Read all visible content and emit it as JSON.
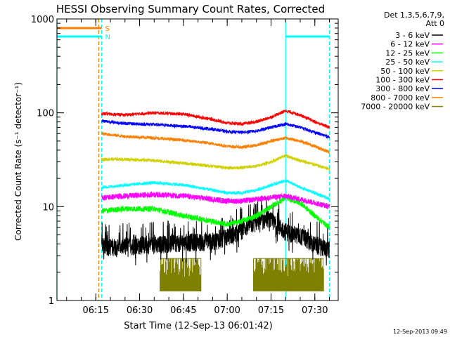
{
  "chart_data": {
    "type": "line",
    "title": "HESSI Observing Summary Count Rates, Corrected",
    "xlabel": "Start Time (12-Sep-13 06:01:42)",
    "ylabel": "Corrected Count Rate (s⁻¹ detector⁻¹)",
    "xlim": [
      "06:01:42",
      "07:38:00"
    ],
    "ylim": [
      1,
      1000
    ],
    "yscale": "log",
    "x_ticks": [
      "06:15",
      "06:30",
      "06:45",
      "07:00",
      "07:15",
      "07:30"
    ],
    "y_ticks": [
      "1",
      "10",
      "100",
      "1000"
    ],
    "legend": {
      "placement": "top-right",
      "header": [
        "Det 1,3,5,6,7,9,",
        "Att 0"
      ]
    },
    "footer": "12-Sep-2013 09:49",
    "data_start": "06:17",
    "data_end": "07:35",
    "series": [
      {
        "name": "3 - 6 keV",
        "color": "#000000",
        "x": [
          "06:17",
          "06:25",
          "06:35",
          "06:45",
          "06:55",
          "07:02",
          "07:08",
          "07:14",
          "07:20",
          "07:26",
          "07:30",
          "07:35"
        ],
        "y": [
          3.8,
          3.8,
          4.0,
          4.2,
          4.3,
          5.0,
          6.5,
          7.5,
          5.5,
          4.8,
          4.0,
          3.5
        ]
      },
      {
        "name": "6 - 12 keV",
        "color": "#ff00ff",
        "x": [
          "06:17",
          "06:25",
          "06:35",
          "06:45",
          "06:55",
          "07:00",
          "07:05",
          "07:10",
          "07:15",
          "07:20",
          "07:25",
          "07:30",
          "07:35"
        ],
        "y": [
          12.5,
          13,
          13.5,
          13,
          12,
          11.5,
          11.5,
          12,
          12.5,
          13,
          12,
          11,
          10
        ]
      },
      {
        "name": "12 - 25 keV",
        "color": "#00ff00",
        "x": [
          "06:17",
          "06:25",
          "06:35",
          "06:45",
          "06:55",
          "07:00",
          "07:05",
          "07:10",
          "07:15",
          "07:20",
          "07:25",
          "07:30",
          "07:35"
        ],
        "y": [
          9,
          9.5,
          9.5,
          8,
          7,
          6.5,
          7,
          8,
          10,
          12.5,
          11,
          8,
          6
        ]
      },
      {
        "name": "25 - 50 keV",
        "color": "#00ffff",
        "x": [
          "06:17",
          "06:25",
          "06:35",
          "06:45",
          "06:55",
          "07:00",
          "07:05",
          "07:10",
          "07:15",
          "07:20",
          "07:25",
          "07:30",
          "07:35"
        ],
        "y": [
          16,
          17,
          18,
          17,
          15,
          14,
          14,
          15,
          17,
          19,
          16,
          14,
          12
        ]
      },
      {
        "name": "50 - 100 keV",
        "color": "#d0d000",
        "x": [
          "06:17",
          "06:25",
          "06:35",
          "06:45",
          "06:55",
          "07:00",
          "07:05",
          "07:10",
          "07:15",
          "07:20",
          "07:25",
          "07:30",
          "07:35"
        ],
        "y": [
          32,
          32,
          31,
          29,
          27,
          26,
          26,
          27,
          30,
          35,
          31,
          28,
          25
        ]
      },
      {
        "name": "100 - 300 keV",
        "color": "#ff0000",
        "x": [
          "06:17",
          "06:25",
          "06:35",
          "06:45",
          "06:55",
          "07:00",
          "07:05",
          "07:10",
          "07:15",
          "07:20",
          "07:25",
          "07:30",
          "07:35"
        ],
        "y": [
          98,
          95,
          100,
          97,
          85,
          78,
          76,
          80,
          90,
          105,
          95,
          80,
          70
        ]
      },
      {
        "name": "300 - 800 keV",
        "color": "#0000ff",
        "x": [
          "06:17",
          "06:25",
          "06:35",
          "06:45",
          "06:55",
          "07:00",
          "07:05",
          "07:10",
          "07:15",
          "07:20",
          "07:25",
          "07:30",
          "07:35"
        ],
        "y": [
          82,
          77,
          75,
          72,
          67,
          63,
          62,
          64,
          70,
          76,
          70,
          62,
          55
        ]
      },
      {
        "name": "800 - 7000 keV",
        "color": "#ff8000",
        "x": [
          "06:17",
          "06:25",
          "06:35",
          "06:45",
          "06:55",
          "07:00",
          "07:05",
          "07:10",
          "07:15",
          "07:20",
          "07:25",
          "07:30",
          "07:35"
        ],
        "y": [
          60,
          56,
          54,
          51,
          47,
          44,
          43,
          45,
          50,
          54,
          50,
          44,
          38
        ]
      },
      {
        "name": "7000 - 20000 keV",
        "color": "#808000",
        "segments": [
          {
            "x": [
              "06:37",
              "06:51"
            ],
            "y_low": 1.25,
            "y_high": 2.8
          },
          {
            "x": [
              "07:09",
              "07:33"
            ],
            "y_low": 1.25,
            "y_high": 2.8
          }
        ]
      }
    ],
    "annotations": [
      {
        "label": "S",
        "color": "#ff8000",
        "x": [
          "06:01:42",
          "06:17"
        ],
        "y": 800
      },
      {
        "label": "N",
        "color": "#00ffff",
        "x": [
          "06:01:42",
          "06:17"
        ],
        "y": 650
      },
      {
        "label": "",
        "color": "#00ffff",
        "x": [
          "07:20",
          "07:35"
        ],
        "y": 650
      }
    ],
    "vertical_markers": [
      {
        "x": "06:01:42",
        "color": "#00ffff",
        "style": "solid"
      },
      {
        "x": "06:16",
        "color": "#ff8000",
        "style": "dashed"
      },
      {
        "x": "06:17",
        "color": "#00ffff",
        "style": "dashed"
      },
      {
        "x": "07:20",
        "color": "#00ffff",
        "style": "solid"
      },
      {
        "x": "07:35",
        "color": "#00ffff",
        "style": "dashed"
      }
    ]
  }
}
